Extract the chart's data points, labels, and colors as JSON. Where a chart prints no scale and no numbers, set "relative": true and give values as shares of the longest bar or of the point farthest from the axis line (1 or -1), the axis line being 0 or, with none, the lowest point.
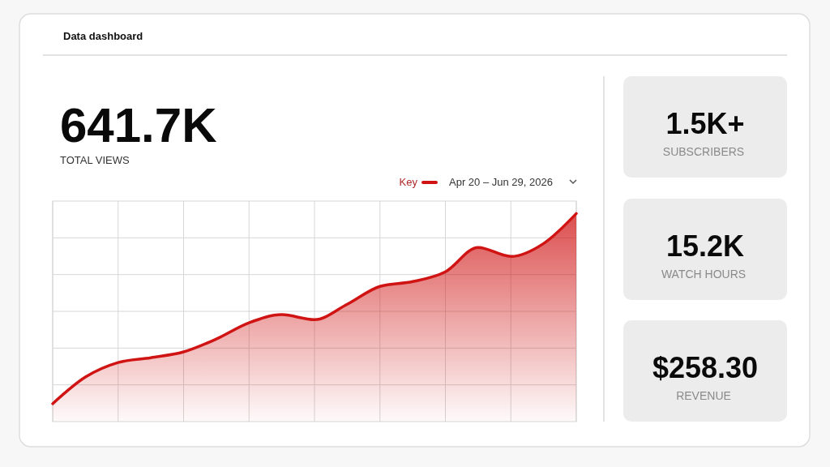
{
  "chart_data": [
    {
      "type": "area",
      "title": "Data dashboard",
      "relative": true,
      "grid": true,
      "legend": "top right",
      "annotations": [
        "641.7K",
        "TOTAL VIEWS",
        "Apr 20 – Jun 29, 2026"
      ],
      "categories": [
        null,
        null,
        null,
        null,
        null,
        null,
        null,
        null,
        null,
        null,
        null,
        null,
        null,
        null,
        null,
        null,
        null
      ],
      "series": [
        {
          "name": "Key",
          "color": "#d01414",
          "values": [
            0.086,
            0.214,
            0.284,
            0.307,
            0.335,
            0.397,
            0.475,
            0.514,
            0.49,
            0.564,
            0.65,
            0.673,
            0.72,
            0.837,
            0.794,
            0.856,
            1
          ]
        }
      ]
    },
    {
      "type": "other",
      "title": "1.5K+",
      "subtitle": "SUBSCRIBERS"
    },
    {
      "type": "other",
      "title": "15.2K",
      "subtitle": "WATCH HOURS"
    },
    {
      "type": "other",
      "title": "$258.30",
      "subtitle": "REVENUE"
    }
  ]
}
